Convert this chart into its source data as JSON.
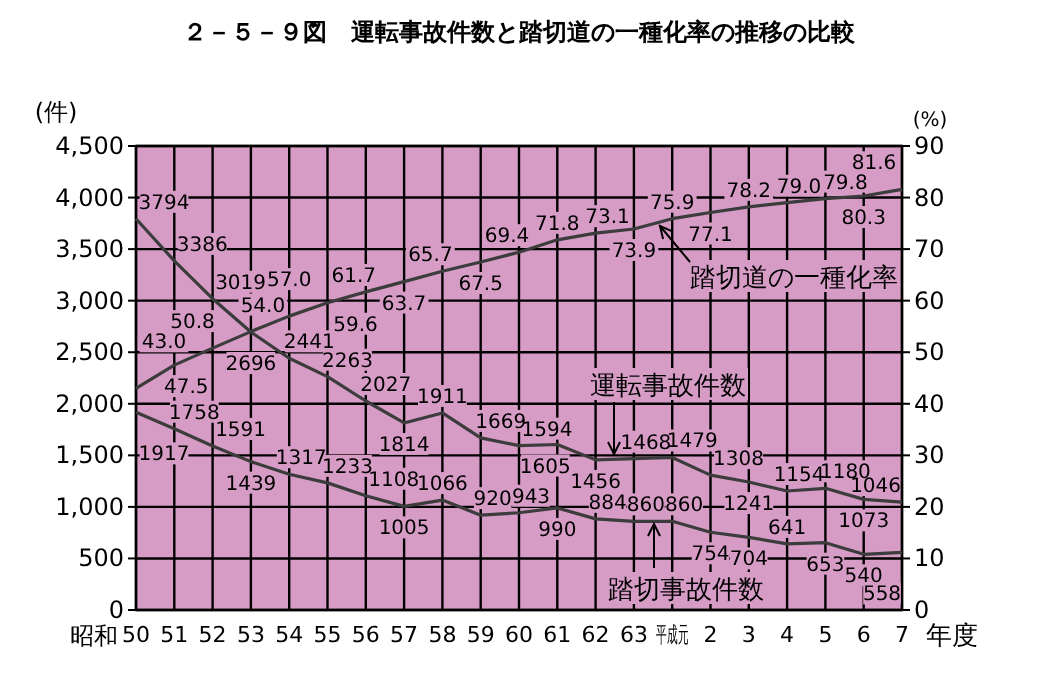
{
  "chart_data": {
    "type": "line",
    "title": "２－５－９図　運転事故件数と踏切道の一種化率の推移の比較",
    "ylabel": "(件)",
    "y2label": "(%)",
    "xlabel": "年度",
    "categories": [
      "50",
      "51",
      "52",
      "53",
      "54",
      "55",
      "56",
      "57",
      "58",
      "59",
      "60",
      "61",
      "62",
      "63",
      "平成元",
      "2",
      "3",
      "4",
      "5",
      "6",
      "7"
    ],
    "series": [
      {
        "color": "#3c3c3c",
        "values": [
          3794,
          3386,
          3019,
          2696,
          2441,
          2263,
          2027,
          1814,
          1911,
          1669,
          1594,
          1605,
          1456,
          1468,
          1479,
          1308,
          1241,
          1154,
          1180,
          1073,
          1046
        ]
      },
      {
        "color": "#3c3c3c",
        "values": [
          1917,
          1758,
          1591,
          1439,
          1317,
          1233,
          1108,
          1005,
          1066,
          920,
          943,
          990,
          884,
          860,
          860,
          754,
          704,
          641,
          653,
          540,
          558
        ]
      },
      {
        "color": "#3c3c3c",
        "axis": "y2",
        "values": [
          43.0,
          47.5,
          50.8,
          54.0,
          57.0,
          59.6,
          61.7,
          63.7,
          65.7,
          67.5,
          69.4,
          71.8,
          73.1,
          73.9,
          75.9,
          77.1,
          78.2,
          79.0,
          79.8,
          80.3,
          81.6
        ],
        "value_labels": [
          "43.0",
          "47.5",
          "50.8",
          "54.0",
          "57.0",
          "59.6",
          "61.7",
          "63.7",
          "65.7",
          "67.5",
          "69.4",
          "71.8",
          "73.1",
          "73.9",
          "75.9",
          "77.1",
          "78.2",
          "79.0",
          "79.8",
          "80.3",
          "81.6"
        ]
      }
    ],
    "ylim": [
      0,
      4500
    ],
    "yticks": [
      0,
      500,
      {
        "value": 1000,
        "label": "1,000"
      },
      {
        "value": 1500,
        "label": "1,500"
      },
      {
        "value": 2000,
        "label": "2,000"
      },
      {
        "value": 2500,
        "label": "2,500"
      },
      {
        "value": 3000,
        "label": "3,000"
      },
      {
        "value": 3500,
        "label": "3,500"
      },
      {
        "value": 4000,
        "label": "4,000"
      },
      {
        "value": 4500,
        "label": "4,500"
      }
    ],
    "y2lim": [
      0,
      90
    ],
    "y2ticks": [
      0,
      10,
      20,
      30,
      40,
      50,
      60,
      70,
      80,
      90
    ],
    "grid": true,
    "marker": "none",
    "line_style": "solid",
    "data_labels": true,
    "annotations": [
      "運転事故件数",
      "踏切事故件数",
      "踏切道の一種化率",
      "昭和"
    ]
  }
}
